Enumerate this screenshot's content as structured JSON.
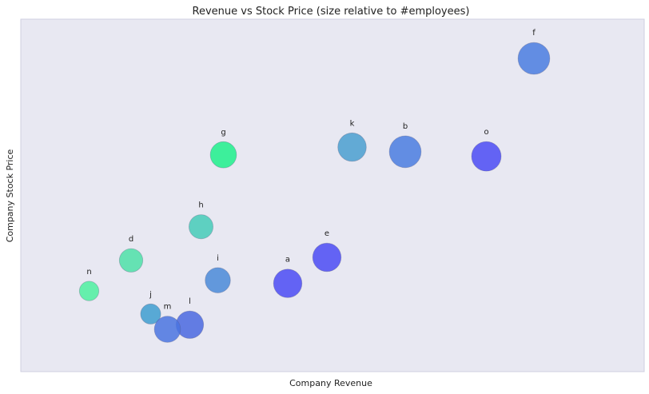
{
  "chart_data": {
    "type": "scatter",
    "title": "Revenue vs Stock Price (size relative to #employees)",
    "xlabel": "Company Revenue",
    "ylabel": "Company Stock Price",
    "xlim": [
      0,
      100
    ],
    "ylim": [
      0,
      100
    ],
    "grid": false,
    "ticks": false,
    "background": "#e8e8f2",
    "points": [
      {
        "label": "a",
        "x": 42.0,
        "y": 21.0,
        "size": 0.85,
        "color": "#4b4bf5"
      },
      {
        "label": "b",
        "x": 63.0,
        "y": 64.0,
        "size": 0.95,
        "color": "#4a7de0"
      },
      {
        "label": "d",
        "x": 14.0,
        "y": 28.5,
        "size": 0.7,
        "color": "#4de0a8"
      },
      {
        "label": "e",
        "x": 49.0,
        "y": 29.5,
        "size": 0.85,
        "color": "#4b4bf5"
      },
      {
        "label": "f",
        "x": 86.0,
        "y": 94.5,
        "size": 0.95,
        "color": "#4a7de0"
      },
      {
        "label": "g",
        "x": 30.5,
        "y": 63.0,
        "size": 0.78,
        "color": "#1ef08c"
      },
      {
        "label": "h",
        "x": 26.5,
        "y": 39.5,
        "size": 0.72,
        "color": "#45cbb8"
      },
      {
        "label": "i",
        "x": 29.5,
        "y": 22.0,
        "size": 0.75,
        "color": "#4a8ad8"
      },
      {
        "label": "j",
        "x": 17.5,
        "y": 11.0,
        "size": 0.6,
        "color": "#3e9ed0"
      },
      {
        "label": "k",
        "x": 53.5,
        "y": 65.5,
        "size": 0.85,
        "color": "#4a9fd0"
      },
      {
        "label": "l",
        "x": 24.5,
        "y": 7.5,
        "size": 0.82,
        "color": "#4a68e0"
      },
      {
        "label": "m",
        "x": 20.5,
        "y": 6.0,
        "size": 0.78,
        "color": "#4a74e0"
      },
      {
        "label": "n",
        "x": 6.5,
        "y": 18.5,
        "size": 0.58,
        "color": "#4ef0a0"
      },
      {
        "label": "o",
        "x": 77.5,
        "y": 62.5,
        "size": 0.88,
        "color": "#4b4bf5"
      }
    ]
  }
}
